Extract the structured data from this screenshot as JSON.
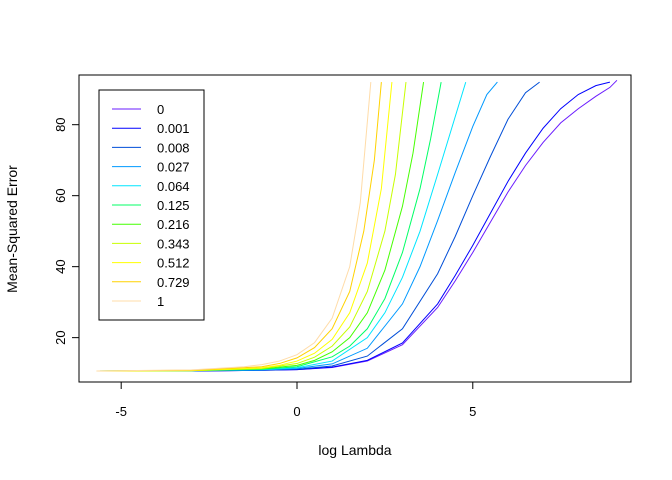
{
  "chart_data": {
    "type": "line",
    "title": "",
    "xlabel": "log Lambda",
    "ylabel": "Mean-Squared Error",
    "xlim": [
      -6.2,
      9.5
    ],
    "ylim": [
      7.5,
      94
    ],
    "x_ticks": [
      -5,
      0,
      5
    ],
    "x_tick_labels": [
      "-5",
      "0",
      "5"
    ],
    "y_ticks": [
      20,
      40,
      60,
      80
    ],
    "y_tick_labels": [
      "20",
      "40",
      "60",
      "80"
    ],
    "grid": false,
    "legend_position": "top-left",
    "series": [
      {
        "name": "0",
        "color": "#6A1BFF",
        "x": [
          -5.7,
          -3,
          -1,
          0,
          1,
          2,
          3,
          4,
          4.5,
          5,
          5.5,
          6,
          6.5,
          7,
          7.5,
          8,
          8.5,
          8.9,
          9.1
        ],
        "y": [
          10.6,
          10.6,
          10.8,
          11.0,
          11.6,
          13.4,
          18.0,
          28.5,
          36.0,
          44.0,
          52.5,
          61.0,
          68.5,
          75.0,
          80.5,
          84.5,
          88.0,
          90.5,
          92.5
        ]
      },
      {
        "name": "0.001",
        "color": "#0000FF",
        "x": [
          -5.7,
          -3,
          -1,
          0,
          1,
          2,
          3,
          4,
          4.5,
          5,
          5.5,
          6,
          6.5,
          7,
          7.5,
          8,
          8.5,
          8.9
        ],
        "y": [
          10.6,
          10.6,
          10.8,
          11.0,
          11.7,
          13.6,
          18.5,
          29.5,
          37.5,
          46.0,
          55.0,
          64.0,
          72.0,
          79.0,
          84.5,
          88.5,
          91.0,
          92.0
        ]
      },
      {
        "name": "0.008",
        "color": "#004ED8",
        "x": [
          -5.7,
          -3,
          -1,
          0,
          1,
          2,
          3,
          4,
          4.5,
          5,
          5.5,
          6,
          6.5,
          6.9
        ],
        "y": [
          10.6,
          10.6,
          10.8,
          11.1,
          12.0,
          14.8,
          22.5,
          38.0,
          48.5,
          60.0,
          71.0,
          81.5,
          89.0,
          92.0
        ]
      },
      {
        "name": "0.027",
        "color": "#0099FF",
        "x": [
          -5.7,
          -3,
          -1,
          0,
          1,
          2,
          3,
          3.5,
          4,
          4.5,
          5,
          5.4,
          5.7
        ],
        "y": [
          10.6,
          10.7,
          10.9,
          11.3,
          12.6,
          17.0,
          29.5,
          40.0,
          53.0,
          66.5,
          79.5,
          88.5,
          92.0
        ]
      },
      {
        "name": "0.064",
        "color": "#00E5FF",
        "x": [
          -5.7,
          -3,
          -1,
          0,
          1,
          2,
          2.5,
          3,
          3.5,
          4,
          4.4,
          4.8
        ],
        "y": [
          10.6,
          10.7,
          11.0,
          11.5,
          13.4,
          20.0,
          27.0,
          37.0,
          50.0,
          66.0,
          79.0,
          92.0
        ]
      },
      {
        "name": "0.125",
        "color": "#00FF66",
        "x": [
          -5.7,
          -3,
          -1,
          0,
          1,
          1.5,
          2,
          2.5,
          3,
          3.5,
          3.8,
          4.1
        ],
        "y": [
          10.6,
          10.7,
          11.1,
          11.8,
          14.6,
          17.6,
          22.5,
          31.0,
          44.0,
          62.0,
          76.0,
          92.0
        ]
      },
      {
        "name": "0.216",
        "color": "#44FF00",
        "x": [
          -5.7,
          -3,
          -1,
          0,
          0.5,
          1,
          1.5,
          2,
          2.5,
          3,
          3.3,
          3.6
        ],
        "y": [
          10.6,
          10.7,
          11.2,
          12.2,
          13.6,
          16.0,
          20.0,
          27.0,
          39.0,
          57.0,
          72.0,
          92.0
        ]
      },
      {
        "name": "0.343",
        "color": "#C8FF00",
        "x": [
          -5.7,
          -3,
          -1,
          0,
          0.5,
          1,
          1.5,
          2,
          2.5,
          2.8,
          3.1
        ],
        "y": [
          10.6,
          10.7,
          11.3,
          12.7,
          14.5,
          17.6,
          23.0,
          33.0,
          50.0,
          66.0,
          92.0
        ]
      },
      {
        "name": "0.512",
        "color": "#FFFF00",
        "x": [
          -5.7,
          -3,
          -1,
          -0.5,
          0,
          0.5,
          1,
          1.5,
          2,
          2.4,
          2.7
        ],
        "y": [
          10.6,
          10.7,
          11.5,
          12.2,
          13.4,
          15.6,
          19.5,
          27.0,
          41.0,
          62.0,
          92.0
        ]
      },
      {
        "name": "0.729",
        "color": "#FFD200",
        "x": [
          -5.7,
          -3,
          -1,
          -0.5,
          0,
          0.5,
          1,
          1.5,
          1.9,
          2.2,
          2.4
        ],
        "y": [
          10.6,
          10.8,
          11.8,
          12.7,
          14.3,
          17.2,
          22.5,
          33.0,
          50.0,
          70.0,
          92.0
        ]
      },
      {
        "name": "1",
        "color": "#FFDCA8",
        "x": [
          -5.7,
          -3,
          -1.5,
          -1,
          -0.5,
          0,
          0.5,
          1,
          1.5,
          1.8,
          2.1
        ],
        "y": [
          10.6,
          10.9,
          11.8,
          12.4,
          13.4,
          15.2,
          18.6,
          25.5,
          40.0,
          58.0,
          92.0
        ]
      }
    ]
  }
}
